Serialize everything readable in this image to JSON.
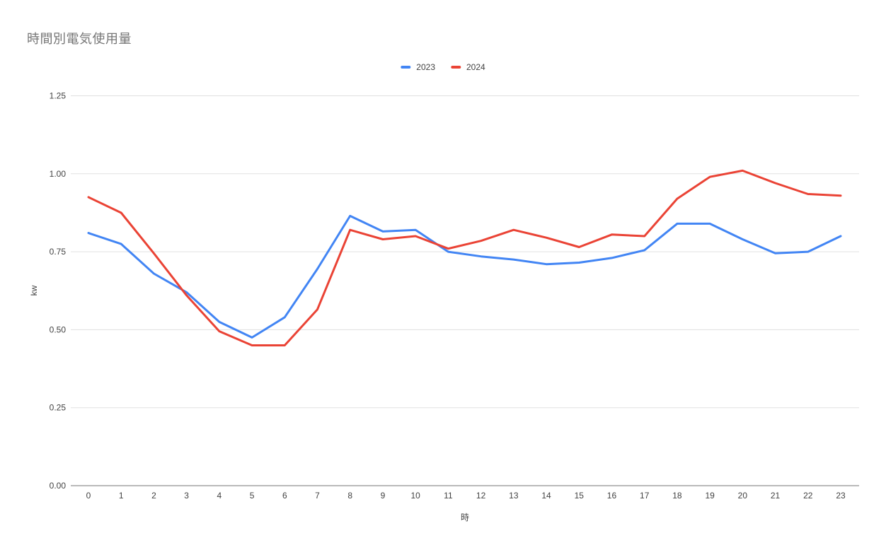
{
  "page": {
    "title": "時間別電気使用量"
  },
  "legend": {
    "items": [
      {
        "label": "2023",
        "color": "#4285F4"
      },
      {
        "label": "2024",
        "color": "#EA4335"
      }
    ]
  },
  "chart_data": {
    "type": "line",
    "title": "時間別電気使用量",
    "xlabel": "時",
    "ylabel": "kw",
    "categories": [
      "0",
      "1",
      "2",
      "3",
      "4",
      "5",
      "6",
      "7",
      "8",
      "9",
      "10",
      "11",
      "12",
      "13",
      "14",
      "15",
      "16",
      "17",
      "18",
      "19",
      "20",
      "21",
      "22",
      "23"
    ],
    "series": [
      {
        "name": "2023",
        "color": "#4285F4",
        "values": [
          0.81,
          0.775,
          0.68,
          0.62,
          0.525,
          0.475,
          0.54,
          0.695,
          0.865,
          0.815,
          0.82,
          0.75,
          0.735,
          0.725,
          0.71,
          0.715,
          0.73,
          0.755,
          0.84,
          0.84,
          0.79,
          0.745,
          0.75,
          0.8
        ]
      },
      {
        "name": "2024",
        "color": "#EA4335",
        "values": [
          0.925,
          0.875,
          0.745,
          0.61,
          0.495,
          0.45,
          0.45,
          0.565,
          0.82,
          0.79,
          0.8,
          0.76,
          0.785,
          0.82,
          0.795,
          0.765,
          0.805,
          0.8,
          0.92,
          0.99,
          1.01,
          0.97,
          0.935,
          0.93
        ]
      }
    ],
    "ylim": [
      0,
      1.25
    ],
    "yticks": [
      0,
      0.25,
      0.5,
      0.75,
      1.0,
      1.25
    ],
    "ytick_labels": [
      "0.00",
      "0.25",
      "0.50",
      "0.75",
      "1.00",
      "1.25"
    ],
    "grid": true,
    "legend_position": "top"
  },
  "colors": {
    "grid_line": "#e0e0e0",
    "axis_line": "#757575",
    "title_text": "#757575",
    "tick_text": "#424242"
  }
}
